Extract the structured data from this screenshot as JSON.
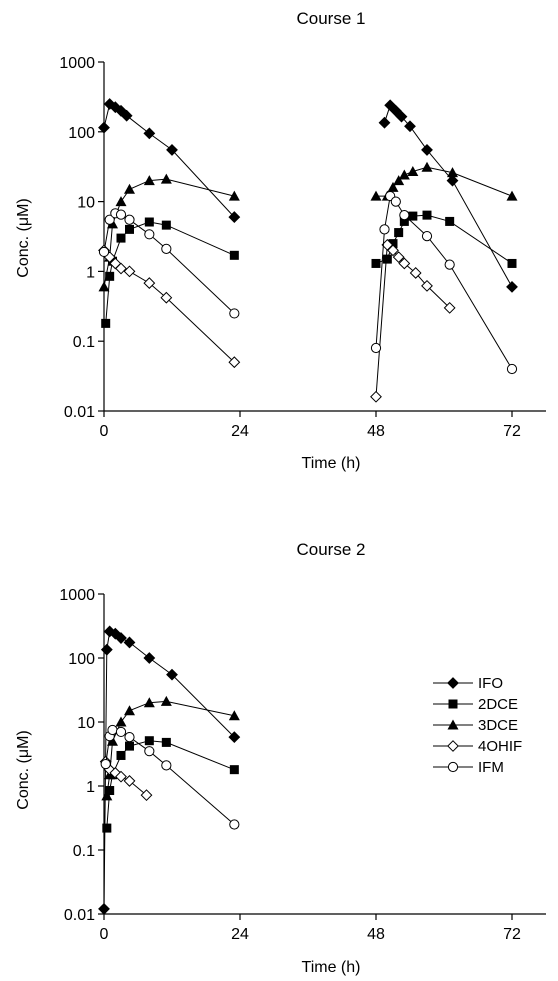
{
  "chart_data": [
    {
      "type": "scatter",
      "title": "Course 1",
      "xlabel": "Time (h)",
      "ylabel": "Conc. (μM)",
      "yscale": "log",
      "xlim": [
        0,
        78
      ],
      "ylim": [
        0.01,
        1000
      ],
      "xticks": [
        "0",
        "24",
        "48",
        "72"
      ],
      "yticks": [
        "0.01",
        "0.1",
        "1",
        "10",
        "100",
        "1000"
      ],
      "grid": false,
      "series": [
        {
          "name": "IFO",
          "marker": "diamond-filled",
          "segments": [
            [
              [
                0,
                115
              ],
              [
                1,
                250
              ],
              [
                2,
                225
              ],
              [
                3,
                200
              ],
              [
                4,
                170
              ],
              [
                8,
                95
              ],
              [
                12,
                55
              ],
              [
                23,
                6
              ]
            ],
            [
              [
                49.5,
                135
              ],
              [
                50.5,
                240
              ],
              [
                51.5,
                200
              ],
              [
                52.5,
                165
              ],
              [
                54,
                120
              ],
              [
                57,
                55
              ],
              [
                61.5,
                20
              ],
              [
                72,
                0.6
              ]
            ]
          ]
        },
        {
          "name": "2DCE",
          "marker": "square-filled",
          "segments": [
            [
              [
                0.3,
                0.18
              ],
              [
                1,
                0.85
              ],
              [
                1.5,
                1.4
              ],
              [
                3,
                3
              ],
              [
                4.5,
                4
              ],
              [
                8,
                5.1
              ],
              [
                11,
                4.6
              ],
              [
                23,
                1.7
              ]
            ],
            [
              [
                48,
                1.3
              ],
              [
                50,
                1.5
              ],
              [
                51,
                2.5
              ],
              [
                52,
                3.6
              ],
              [
                53,
                5.2
              ],
              [
                54.5,
                6.2
              ],
              [
                57,
                6.4
              ],
              [
                61,
                5.2
              ],
              [
                72,
                1.3
              ]
            ]
          ]
        },
        {
          "name": "3DCE",
          "marker": "triangle-filled",
          "segments": [
            [
              [
                0,
                0.6
              ],
              [
                1,
                1.6
              ],
              [
                1.5,
                4.8
              ],
              [
                3,
                10
              ],
              [
                4.5,
                15
              ],
              [
                8,
                20
              ],
              [
                11,
                21
              ],
              [
                23,
                12
              ]
            ],
            [
              [
                48,
                12
              ],
              [
                50,
                12
              ],
              [
                51,
                16
              ],
              [
                52,
                20
              ],
              [
                53,
                24
              ],
              [
                54.5,
                27
              ],
              [
                57,
                31
              ],
              [
                61.5,
                26
              ],
              [
                72,
                12
              ]
            ]
          ]
        },
        {
          "name": "4OHIF",
          "marker": "diamond-open",
          "segments": [
            [
              [
                0,
                2
              ],
              [
                1,
                1.6
              ],
              [
                2,
                1.3
              ],
              [
                3,
                1.1
              ],
              [
                4.5,
                1.0
              ],
              [
                8,
                0.68
              ],
              [
                11,
                0.42
              ],
              [
                23,
                0.05
              ]
            ],
            [
              [
                48,
                0.016
              ],
              [
                50,
                2.4
              ],
              [
                51,
                2.0
              ],
              [
                52,
                1.6
              ],
              [
                53,
                1.3
              ],
              [
                55,
                0.95
              ],
              [
                57,
                0.62
              ],
              [
                61,
                0.3
              ]
            ]
          ]
        },
        {
          "name": "IFM",
          "marker": "circle-open",
          "segments": [
            [
              [
                0,
                1.9
              ],
              [
                1,
                5.5
              ],
              [
                2,
                6.8
              ],
              [
                3,
                6.5
              ],
              [
                4.5,
                5.5
              ],
              [
                8,
                3.4
              ],
              [
                11,
                2.1
              ],
              [
                23,
                0.25
              ]
            ],
            [
              [
                48,
                0.08
              ],
              [
                49.5,
                4
              ],
              [
                50.5,
                12
              ],
              [
                51.5,
                10
              ],
              [
                53,
                6.4
              ],
              [
                57,
                3.2
              ],
              [
                61,
                1.25
              ],
              [
                72,
                0.04
              ]
            ]
          ]
        }
      ]
    },
    {
      "type": "scatter",
      "title": "Course 2",
      "xlabel": "Time (h)",
      "ylabel": "Conc. (μM)",
      "yscale": "log",
      "xlim": [
        0,
        78
      ],
      "ylim": [
        0.01,
        1000
      ],
      "xticks": [
        "0",
        "24",
        "48",
        "72"
      ],
      "yticks": [
        "0.01",
        "0.1",
        "1",
        "10",
        "100",
        "1000"
      ],
      "grid": false,
      "legend": {
        "position": "right",
        "entries": [
          "IFO",
          "2DCE",
          "3DCE",
          "4OHIF",
          "IFM"
        ]
      },
      "series": [
        {
          "name": "IFO",
          "marker": "diamond-filled",
          "segments": [
            [
              [
                0,
                0.012
              ],
              [
                0.5,
                135
              ],
              [
                1,
                260
              ],
              [
                2,
                240
              ],
              [
                3,
                205
              ],
              [
                4.5,
                175
              ],
              [
                8,
                100
              ],
              [
                12,
                55
              ],
              [
                23,
                5.8
              ]
            ]
          ]
        },
        {
          "name": "2DCE",
          "marker": "square-filled",
          "segments": [
            [
              [
                0.5,
                0.22
              ],
              [
                1,
                0.85
              ],
              [
                1.5,
                1.5
              ],
              [
                3,
                3
              ],
              [
                4.5,
                4.2
              ],
              [
                8,
                5.1
              ],
              [
                11,
                4.8
              ],
              [
                23,
                1.8
              ]
            ]
          ]
        },
        {
          "name": "3DCE",
          "marker": "triangle-filled",
          "segments": [
            [
              [
                0.5,
                0.7
              ],
              [
                1,
                1.5
              ],
              [
                1.5,
                5
              ],
              [
                3,
                10
              ],
              [
                4.5,
                15
              ],
              [
                8,
                20
              ],
              [
                11,
                21
              ],
              [
                23,
                12.5
              ]
            ]
          ]
        },
        {
          "name": "4OHIF",
          "marker": "diamond-open",
          "segments": [
            [
              [
                0.3,
                2.4
              ],
              [
                1,
                1.8
              ],
              [
                2,
                1.6
              ],
              [
                3,
                1.4
              ],
              [
                4.5,
                1.2
              ],
              [
                7.5,
                0.72
              ]
            ]
          ]
        },
        {
          "name": "IFM",
          "marker": "circle-open",
          "segments": [
            [
              [
                0.3,
                2.2
              ],
              [
                1,
                6
              ],
              [
                1.5,
                7.5
              ],
              [
                3,
                7
              ],
              [
                4.5,
                5.8
              ],
              [
                8,
                3.5
              ],
              [
                11,
                2.1
              ],
              [
                23,
                0.25
              ]
            ]
          ]
        }
      ]
    }
  ]
}
